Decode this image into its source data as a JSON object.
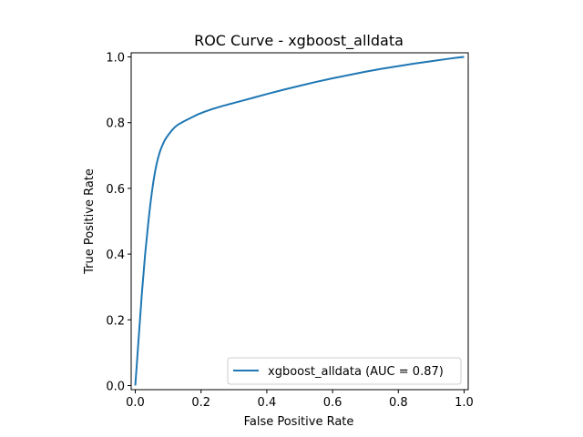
{
  "chart_data": {
    "type": "line",
    "title": "ROC Curve - xgboost_alldata",
    "xlabel": "False Positive Rate",
    "ylabel": "True Positive Rate",
    "xlim": [
      -0.0125,
      1.0125
    ],
    "ylim": [
      -0.0125,
      1.0125
    ],
    "xticks": [
      {
        "value": 0.0,
        "label": "0.0"
      },
      {
        "value": 0.2,
        "label": "0.2"
      },
      {
        "value": 0.4,
        "label": "0.4"
      },
      {
        "value": 0.6,
        "label": "0.6"
      },
      {
        "value": 0.8,
        "label": "0.8"
      },
      {
        "value": 1.0,
        "label": "1.0"
      }
    ],
    "yticks": [
      {
        "value": 0.0,
        "label": "0.0"
      },
      {
        "value": 0.2,
        "label": "0.2"
      },
      {
        "value": 0.4,
        "label": "0.4"
      },
      {
        "value": 0.6,
        "label": "0.6"
      },
      {
        "value": 0.8,
        "label": "0.8"
      },
      {
        "value": 1.0,
        "label": "1.0"
      }
    ],
    "grid": false,
    "legend_position": "lower right",
    "series": [
      {
        "name": "xgboost_alldata (AUC = 0.87)",
        "color": "#1f77b4",
        "x": [
          0.0,
          0.005,
          0.01,
          0.015,
          0.02,
          0.025,
          0.03,
          0.035,
          0.04,
          0.045,
          0.05,
          0.055,
          0.06,
          0.065,
          0.07,
          0.075,
          0.08,
          0.085,
          0.09,
          0.095,
          0.1,
          0.11,
          0.12,
          0.13,
          0.15,
          0.17,
          0.19,
          0.21,
          0.23,
          0.25,
          0.27,
          0.3,
          0.33,
          0.36,
          0.4,
          0.45,
          0.5,
          0.55,
          0.6,
          0.65,
          0.7,
          0.75,
          0.8,
          0.85,
          0.9,
          0.95,
          0.98,
          1.0
        ],
        "y": [
          0.0,
          0.07,
          0.14,
          0.21,
          0.28,
          0.34,
          0.4,
          0.45,
          0.5,
          0.545,
          0.585,
          0.62,
          0.65,
          0.675,
          0.695,
          0.712,
          0.725,
          0.737,
          0.747,
          0.755,
          0.762,
          0.775,
          0.786,
          0.794,
          0.805,
          0.815,
          0.825,
          0.833,
          0.84,
          0.846,
          0.852,
          0.86,
          0.868,
          0.876,
          0.887,
          0.9,
          0.912,
          0.924,
          0.935,
          0.945,
          0.955,
          0.964,
          0.972,
          0.98,
          0.987,
          0.994,
          0.998,
          1.0
        ]
      }
    ]
  }
}
